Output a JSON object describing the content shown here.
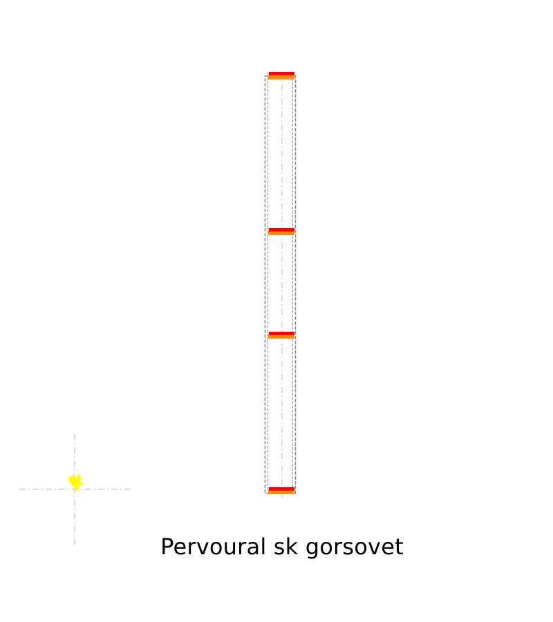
{
  "diagram": {
    "caption": "Pervoural sk gorsovet",
    "colors": {
      "background": "#ffffff",
      "outline": "#8a8a8a",
      "centerline": "#d0d0d0",
      "marker_primary": "#ff0000",
      "marker_secondary": "#ff8c00",
      "point_marker": "#ffff00",
      "caption": "#000000"
    },
    "icons": {
      "point_marker": "star-marker-icon"
    }
  }
}
